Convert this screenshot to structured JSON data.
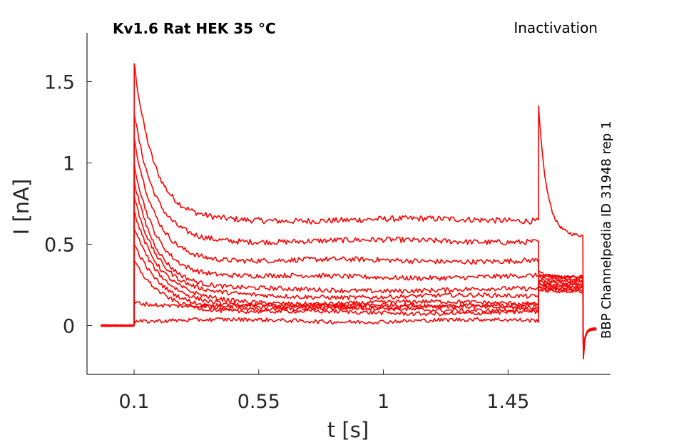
{
  "chart_data": {
    "type": "line",
    "title": "Kv1.6  Rat  HEK  35 °C",
    "protocol": "Inactivation",
    "source_note": "BBP Channelpedia ID 31948 rep 1",
    "xlabel": "t [s]",
    "ylabel": "I [nA]",
    "xlim": [
      -0.07,
      1.82
    ],
    "ylim": [
      -0.3,
      1.8
    ],
    "xticks": [
      0.1,
      0.55,
      1,
      1.45
    ],
    "xtick_labels": [
      "0.1",
      "0.55",
      "1",
      "1.45"
    ],
    "yticks": [
      0,
      0.5,
      1,
      1.5
    ],
    "ytick_labels": [
      "0",
      "0.5",
      "1",
      "1.5"
    ],
    "grid": false,
    "line_color": "#ff0000",
    "traces": [
      {
        "peak": 1.61,
        "steady": 0.65,
        "test_peak": 1.35,
        "test_steady": 0.55
      },
      {
        "peak": 1.3,
        "steady": 0.52,
        "test_peak": 0.33,
        "test_steady": 0.3
      },
      {
        "peak": 1.15,
        "steady": 0.4,
        "test_peak": 0.32,
        "test_steady": 0.3
      },
      {
        "peak": 1.0,
        "steady": 0.3,
        "test_peak": 0.31,
        "test_steady": 0.29
      },
      {
        "peak": 0.9,
        "steady": 0.22,
        "test_peak": 0.3,
        "test_steady": 0.28
      },
      {
        "peak": 0.8,
        "steady": 0.18,
        "test_peak": 0.28,
        "test_steady": 0.27
      },
      {
        "peak": 0.7,
        "steady": 0.14,
        "test_peak": 0.27,
        "test_steady": 0.26
      },
      {
        "peak": 0.6,
        "steady": 0.12,
        "test_peak": 0.26,
        "test_steady": 0.25
      },
      {
        "peak": 0.5,
        "steady": 0.1,
        "test_peak": 0.25,
        "test_steady": 0.24
      },
      {
        "peak": 0.4,
        "steady": 0.08,
        "test_peak": 0.24,
        "test_steady": 0.23
      },
      {
        "peak": 0.15,
        "steady": 0.12,
        "test_peak": 0.23,
        "test_steady": 0.22
      },
      {
        "peak": 0.03,
        "steady": 0.03,
        "test_peak": 0.22,
        "test_steady": 0.21
      }
    ]
  }
}
